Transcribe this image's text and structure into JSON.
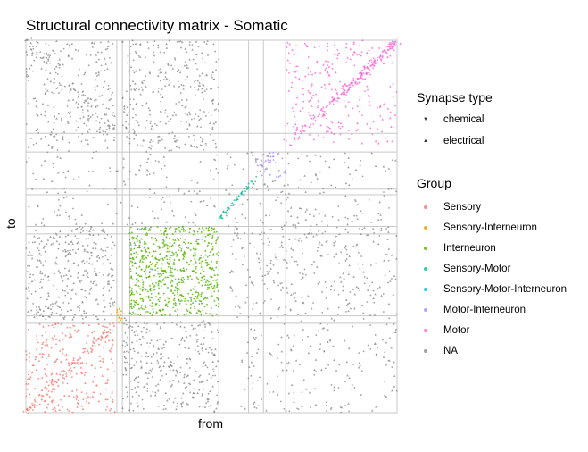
{
  "chart_data": {
    "type": "scatter",
    "title": "Structural connectivity matrix - Somatic",
    "xlabel": "from",
    "ylabel": "to",
    "grid": true,
    "axis_range": [
      0,
      1
    ],
    "group_boundaries": [
      0,
      0.24,
      0.255,
      0.282,
      0.52,
      0.55,
      0.58,
      0.7,
      1.0
    ],
    "block_order_x": [
      "NA",
      "Interneuron",
      "NA",
      "NA",
      "NA",
      "NA",
      "Motor"
    ],
    "legend": {
      "synapse_title": "Synapse type",
      "synapse_items": [
        {
          "label": "chemical",
          "glyph": "▼"
        },
        {
          "label": "electrical",
          "glyph": "▲"
        }
      ],
      "group_title": "Group",
      "group_items": [
        {
          "label": "Sensory",
          "color": "#F8766D"
        },
        {
          "label": "Sensory-Interneuron",
          "color": "#E69F00"
        },
        {
          "label": "Interneuron",
          "color": "#53B400"
        },
        {
          "label": "Sensory-Motor",
          "color": "#00C094"
        },
        {
          "label": "Sensory-Motor-Interneuron",
          "color": "#00B6EB"
        },
        {
          "label": "Motor-Interneuron",
          "color": "#A58AFF"
        },
        {
          "label": "Motor",
          "color": "#FB61D7"
        },
        {
          "label": "NA",
          "color": "#8C8C8C"
        }
      ]
    }
  }
}
